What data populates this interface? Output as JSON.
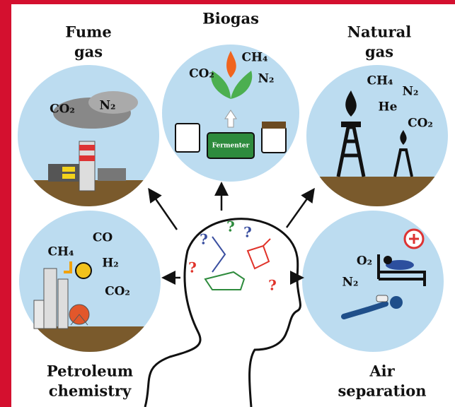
{
  "panels": [
    {
      "label": [
        "Fume",
        "gas"
      ],
      "gases": [
        "CO₂",
        "N₂"
      ]
    },
    {
      "label": [
        "Biogas"
      ],
      "gases": [
        "CO₂",
        "CH₄",
        "N₂"
      ],
      "device": "Fermenter"
    },
    {
      "label": [
        "Natural",
        "gas"
      ],
      "gases": [
        "CH₄",
        "N₂",
        "He",
        "CO₂"
      ]
    },
    {
      "label": [
        "Petroleum",
        "chemistry"
      ],
      "gases": [
        "CH₄",
        "CO",
        "H₂",
        "CO₂"
      ]
    },
    {
      "label": [
        "Air",
        "separation"
      ],
      "gases": [
        "O₂",
        "N₂"
      ]
    }
  ],
  "question_marks": [
    "?",
    "?",
    "?",
    "?",
    "?"
  ]
}
